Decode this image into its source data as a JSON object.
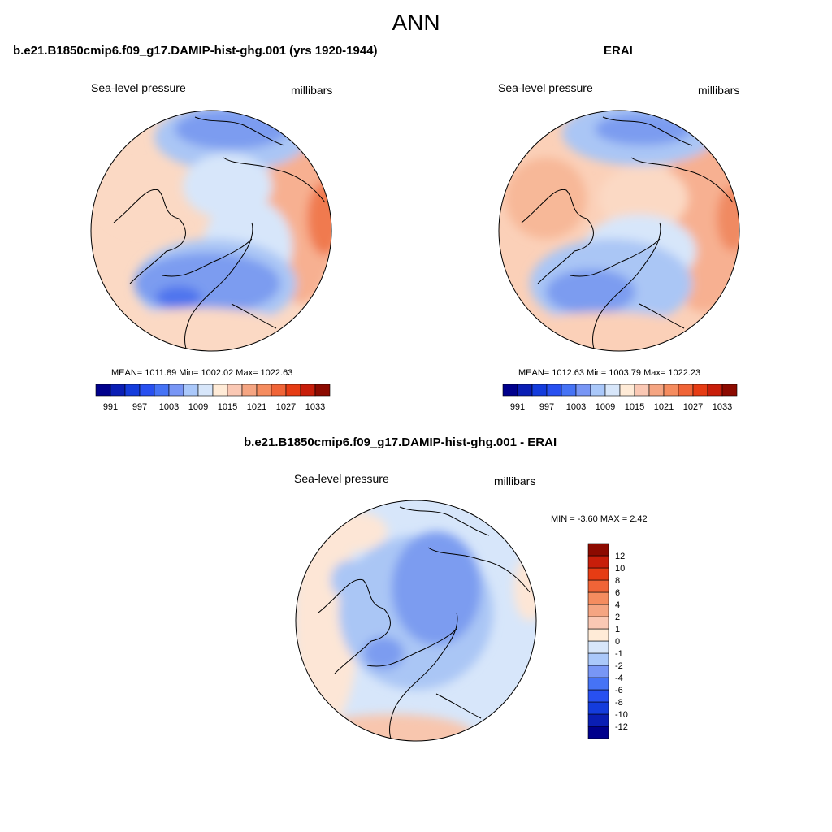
{
  "main_title": "ANN",
  "panels": [
    {
      "title": "b.e21.B1850cmip6.f09_g17.DAMIP-hist-ghg.001 (yrs 1920-1944)",
      "variable": "Sea-level pressure",
      "units": "millibars",
      "stats": "MEAN= 1011.89  Min= 1002.02  Max= 1022.63",
      "mean": 1011.89,
      "min": 1002.02,
      "max": 1022.63
    },
    {
      "title": "ERAI",
      "variable": "Sea-level pressure",
      "units": "millibars",
      "stats": "MEAN= 1012.63  Min= 1003.79  Max= 1022.23",
      "mean": 1012.63,
      "min": 1003.79,
      "max": 1022.23
    },
    {
      "title": "b.e21.B1850cmip6.f09_g17.DAMIP-hist-ghg.001 - ERAI",
      "variable": "Sea-level pressure",
      "units": "millibars",
      "stats": "MIN =  -3.60 MAX =   2.42",
      "min": -3.6,
      "max": 2.42
    }
  ],
  "colorbar_abs": {
    "colors": [
      "#00008c",
      "#0a1eb4",
      "#143cdc",
      "#2850f0",
      "#4673f5",
      "#7896f5",
      "#aac8fa",
      "#d7e6fa",
      "#ffebd7",
      "#fac8b4",
      "#f5a582",
      "#f58c5f",
      "#f06437",
      "#e63c14",
      "#c81e0a",
      "#8c0a00"
    ],
    "tick_labels": [
      "991",
      "997",
      "1003",
      "1009",
      "1015",
      "1021",
      "1027",
      "1033"
    ]
  },
  "colorbar_diff": {
    "colors": [
      "#00008c",
      "#0a1eb4",
      "#143cdc",
      "#2850f0",
      "#4673f5",
      "#7896f5",
      "#aac8fa",
      "#d7e6fa",
      "#ffebd7",
      "#fac8b4",
      "#f5a582",
      "#f58c5f",
      "#f06437",
      "#e63c14",
      "#c81e0a",
      "#8c0a00"
    ],
    "tick_labels": [
      "12",
      "10",
      "8",
      "6",
      "4",
      "2",
      "1",
      "0",
      "-1",
      "-2",
      "-4",
      "-6",
      "-8",
      "-10",
      "-12"
    ]
  }
}
